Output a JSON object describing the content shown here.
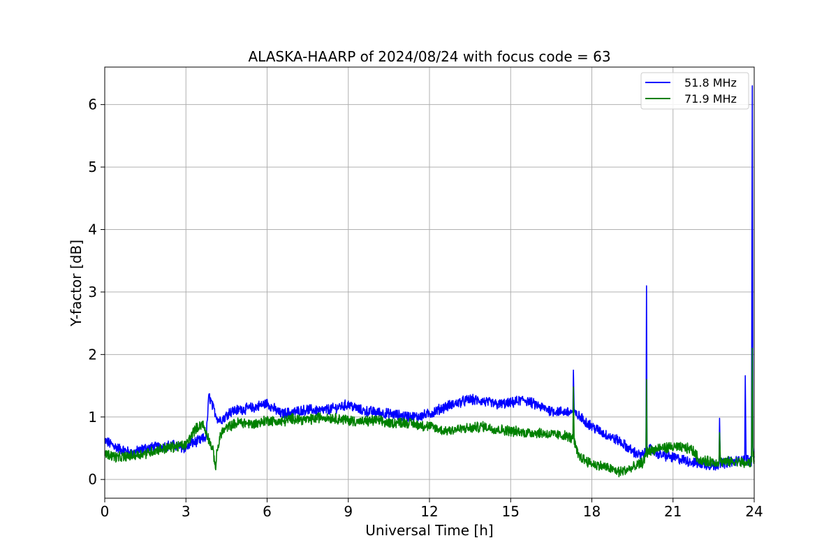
{
  "chart_data": {
    "type": "line",
    "title": "ALASKA-HAARP of 2024/08/24 with focus code = 63",
    "xlabel": "Universal Time [h]",
    "ylabel": "Y-factor [dB]",
    "xlim": [
      0,
      24
    ],
    "ylim": [
      -0.3,
      6.6
    ],
    "xticks": [
      0,
      3,
      6,
      9,
      12,
      15,
      18,
      21,
      24
    ],
    "yticks": [
      0,
      1,
      2,
      3,
      4,
      5,
      6
    ],
    "grid": true,
    "legend_position": "upper-right",
    "series": [
      {
        "name": "51.8 MHz",
        "color": "#0000ff",
        "x": [
          0,
          0.5,
          1,
          1.5,
          2,
          2.5,
          3,
          3.2,
          3.5,
          3.75,
          3.85,
          4.0,
          4.2,
          4.4,
          4.6,
          5,
          5.5,
          6,
          6.5,
          7,
          7.5,
          8,
          8.5,
          9,
          9.5,
          10,
          10.5,
          11,
          11.5,
          12,
          12.5,
          13,
          13.5,
          14,
          14.5,
          15,
          15.5,
          16,
          16.5,
          17,
          17.3,
          17.32,
          17.35,
          17.5,
          18,
          18.5,
          19,
          19.5,
          19.8,
          20.0,
          20.02,
          20.04,
          20.1,
          20.5,
          21,
          21.5,
          22,
          22.5,
          22.7,
          22.72,
          22.75,
          23,
          23.5,
          23.65,
          23.67,
          23.7,
          23.9,
          23.93,
          23.95,
          24
        ],
        "y": [
          0.62,
          0.5,
          0.42,
          0.5,
          0.52,
          0.55,
          0.5,
          0.58,
          0.62,
          0.68,
          1.35,
          1.15,
          0.95,
          0.98,
          1.08,
          1.12,
          1.15,
          1.22,
          1.05,
          1.08,
          1.12,
          1.1,
          1.14,
          1.2,
          1.1,
          1.08,
          1.05,
          1.02,
          1.0,
          1.05,
          1.15,
          1.22,
          1.28,
          1.25,
          1.2,
          1.22,
          1.28,
          1.18,
          1.1,
          1.08,
          1.08,
          1.75,
          1.05,
          1.02,
          0.85,
          0.72,
          0.62,
          0.45,
          0.38,
          0.42,
          3.1,
          0.55,
          0.5,
          0.4,
          0.35,
          0.3,
          0.25,
          0.22,
          0.25,
          0.98,
          0.25,
          0.28,
          0.3,
          0.32,
          1.66,
          0.32,
          0.3,
          6.3,
          0.45,
          0.35
        ]
      },
      {
        "name": "71.9 MHz",
        "color": "#008000",
        "x": [
          0,
          0.5,
          1,
          1.5,
          2,
          2.5,
          3,
          3.3,
          3.6,
          3.8,
          4.0,
          4.1,
          4.15,
          4.3,
          4.6,
          5,
          5.5,
          6,
          6.5,
          7,
          7.5,
          8,
          8.5,
          9,
          9.5,
          10,
          10.5,
          11,
          11.5,
          12,
          12.5,
          13,
          13.5,
          14,
          14.5,
          15,
          15.5,
          16,
          16.5,
          17,
          17.3,
          17.32,
          17.35,
          17.5,
          18,
          18.5,
          19,
          19.5,
          19.9,
          20.0,
          20.02,
          20.04,
          20.1,
          20.5,
          21,
          21.5,
          21.7,
          22,
          22.5,
          22.7,
          22.72,
          22.75,
          23,
          23.5,
          23.7,
          23.9,
          23.93,
          23.95,
          24
        ],
        "y": [
          0.42,
          0.35,
          0.38,
          0.42,
          0.48,
          0.52,
          0.55,
          0.78,
          0.9,
          0.7,
          0.45,
          0.2,
          0.45,
          0.75,
          0.85,
          0.92,
          0.88,
          0.95,
          0.92,
          0.98,
          0.95,
          1.0,
          0.98,
          0.95,
          0.92,
          0.95,
          0.9,
          0.92,
          0.88,
          0.85,
          0.78,
          0.8,
          0.82,
          0.85,
          0.8,
          0.78,
          0.75,
          0.75,
          0.72,
          0.7,
          0.65,
          1.48,
          0.6,
          0.38,
          0.25,
          0.2,
          0.12,
          0.18,
          0.28,
          0.38,
          1.6,
          0.42,
          0.45,
          0.5,
          0.52,
          0.5,
          0.48,
          0.3,
          0.28,
          0.28,
          0.75,
          0.28,
          0.28,
          0.28,
          0.25,
          0.28,
          2.1,
          0.4,
          0.3
        ]
      }
    ]
  }
}
